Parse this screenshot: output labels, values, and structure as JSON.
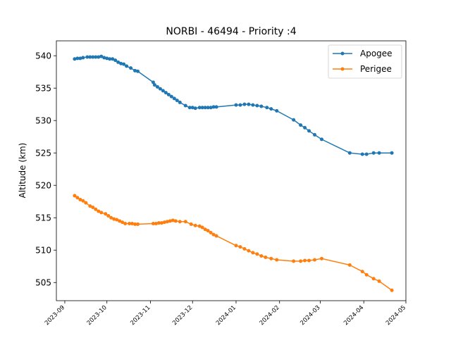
{
  "chart_data": {
    "type": "line",
    "title": "NORBI - 46494 - Priority :4",
    "xlabel": "",
    "ylabel": "Altitude (km)",
    "xlim": [
      "2023-08-26",
      "2024-05-01"
    ],
    "ylim": [
      502.2,
      542.3
    ],
    "x_ticks": [
      "2023-09",
      "2023-10",
      "2023-11",
      "2023-12",
      "2024-01",
      "2024-02",
      "2024-03",
      "2024-04",
      "2024-05"
    ],
    "y_ticks": [
      505,
      510,
      515,
      520,
      525,
      530,
      535,
      540
    ],
    "grid": false,
    "legend_position": "top-right",
    "series": [
      {
        "name": "Apogee",
        "color": "#1f77b4",
        "points": [
          [
            "2023-09-08",
            539.5
          ],
          [
            "2023-09-10",
            539.6
          ],
          [
            "2023-09-12",
            539.6
          ],
          [
            "2023-09-14",
            539.7
          ],
          [
            "2023-09-17",
            539.8
          ],
          [
            "2023-09-19",
            539.8
          ],
          [
            "2023-09-21",
            539.8
          ],
          [
            "2023-09-23",
            539.8
          ],
          [
            "2023-09-25",
            539.8
          ],
          [
            "2023-09-27",
            539.9
          ],
          [
            "2023-09-29",
            539.7
          ],
          [
            "2023-10-01",
            539.6
          ],
          [
            "2023-10-03",
            539.5
          ],
          [
            "2023-10-05",
            539.5
          ],
          [
            "2023-10-07",
            539.3
          ],
          [
            "2023-10-09",
            539.0
          ],
          [
            "2023-10-11",
            538.8
          ],
          [
            "2023-10-13",
            538.7
          ],
          [
            "2023-10-15",
            538.4
          ],
          [
            "2023-10-18",
            538.1
          ],
          [
            "2023-10-21",
            537.7
          ],
          [
            "2023-10-23",
            537.6
          ],
          [
            "2023-11-03",
            535.9
          ],
          [
            "2023-11-04",
            535.5
          ],
          [
            "2023-11-06",
            535.2
          ],
          [
            "2023-11-08",
            534.9
          ],
          [
            "2023-11-10",
            534.6
          ],
          [
            "2023-11-12",
            534.3
          ],
          [
            "2023-11-14",
            534.0
          ],
          [
            "2023-11-16",
            533.7
          ],
          [
            "2023-11-18",
            533.4
          ],
          [
            "2023-11-20",
            533.1
          ],
          [
            "2023-11-22",
            532.8
          ],
          [
            "2023-11-26",
            532.3
          ],
          [
            "2023-11-29",
            532.0
          ],
          [
            "2023-12-01",
            532.0
          ],
          [
            "2023-12-03",
            531.9
          ],
          [
            "2023-12-06",
            532.0
          ],
          [
            "2023-12-08",
            532.0
          ],
          [
            "2023-12-10",
            532.0
          ],
          [
            "2023-12-12",
            532.0
          ],
          [
            "2023-12-14",
            532.0
          ],
          [
            "2023-12-16",
            532.1
          ],
          [
            "2023-12-18",
            532.1
          ],
          [
            "2024-01-01",
            532.4
          ],
          [
            "2024-01-04",
            532.4
          ],
          [
            "2024-01-07",
            532.5
          ],
          [
            "2024-01-10",
            532.5
          ],
          [
            "2024-01-13",
            532.4
          ],
          [
            "2024-01-16",
            532.3
          ],
          [
            "2024-01-19",
            532.2
          ],
          [
            "2024-01-23",
            532.0
          ],
          [
            "2024-01-26",
            531.8
          ],
          [
            "2024-01-30",
            531.5
          ],
          [
            "2024-02-11",
            530.1
          ],
          [
            "2024-02-16",
            529.3
          ],
          [
            "2024-02-19",
            528.9
          ],
          [
            "2024-02-22",
            528.4
          ],
          [
            "2024-02-26",
            527.8
          ],
          [
            "2024-03-02",
            527.1
          ],
          [
            "2024-03-22",
            525.0
          ],
          [
            "2024-03-31",
            524.8
          ],
          [
            "2024-04-03",
            524.8
          ],
          [
            "2024-04-08",
            525.0
          ],
          [
            "2024-04-12",
            525.0
          ],
          [
            "2024-04-21",
            525.0
          ]
        ]
      },
      {
        "name": "Perigee",
        "color": "#ff7f0e",
        "points": [
          [
            "2023-09-08",
            518.4
          ],
          [
            "2023-09-10",
            518.1
          ],
          [
            "2023-09-12",
            517.8
          ],
          [
            "2023-09-14",
            517.6
          ],
          [
            "2023-09-16",
            517.3
          ],
          [
            "2023-09-19",
            516.8
          ],
          [
            "2023-09-21",
            516.6
          ],
          [
            "2023-09-23",
            516.3
          ],
          [
            "2023-09-25",
            516.0
          ],
          [
            "2023-09-27",
            515.8
          ],
          [
            "2023-09-30",
            515.6
          ],
          [
            "2023-10-02",
            515.3
          ],
          [
            "2023-10-04",
            515.0
          ],
          [
            "2023-10-06",
            514.8
          ],
          [
            "2023-10-08",
            514.7
          ],
          [
            "2023-10-10",
            514.5
          ],
          [
            "2023-10-12",
            514.3
          ],
          [
            "2023-10-14",
            514.1
          ],
          [
            "2023-10-17",
            514.1
          ],
          [
            "2023-10-19",
            514.1
          ],
          [
            "2023-10-21",
            514.0
          ],
          [
            "2023-10-23",
            514.0
          ],
          [
            "2023-11-03",
            514.1
          ],
          [
            "2023-11-05",
            514.1
          ],
          [
            "2023-11-07",
            514.2
          ],
          [
            "2023-11-09",
            514.2
          ],
          [
            "2023-11-11",
            514.3
          ],
          [
            "2023-11-13",
            514.4
          ],
          [
            "2023-11-15",
            514.5
          ],
          [
            "2023-11-17",
            514.6
          ],
          [
            "2023-11-19",
            514.5
          ],
          [
            "2023-11-22",
            514.4
          ],
          [
            "2023-11-26",
            514.4
          ],
          [
            "2023-11-30",
            514.0
          ],
          [
            "2023-12-03",
            513.8
          ],
          [
            "2023-12-06",
            513.7
          ],
          [
            "2023-12-08",
            513.5
          ],
          [
            "2023-12-10",
            513.2
          ],
          [
            "2023-12-12",
            513.0
          ],
          [
            "2023-12-14",
            512.7
          ],
          [
            "2023-12-16",
            512.4
          ],
          [
            "2023-12-18",
            512.2
          ],
          [
            "2024-01-01",
            510.7
          ],
          [
            "2024-01-04",
            510.5
          ],
          [
            "2024-01-07",
            510.2
          ],
          [
            "2024-01-10",
            509.9
          ],
          [
            "2024-01-13",
            509.6
          ],
          [
            "2024-01-16",
            509.4
          ],
          [
            "2024-01-19",
            509.1
          ],
          [
            "2024-01-22",
            508.9
          ],
          [
            "2024-01-26",
            508.7
          ],
          [
            "2024-01-30",
            508.5
          ],
          [
            "2024-02-11",
            508.3
          ],
          [
            "2024-02-16",
            508.3
          ],
          [
            "2024-02-19",
            508.4
          ],
          [
            "2024-02-22",
            508.4
          ],
          [
            "2024-02-26",
            508.5
          ],
          [
            "2024-03-02",
            508.7
          ],
          [
            "2024-03-22",
            507.7
          ],
          [
            "2024-03-31",
            506.7
          ],
          [
            "2024-04-03",
            506.2
          ],
          [
            "2024-04-08",
            505.6
          ],
          [
            "2024-04-12",
            505.2
          ],
          [
            "2024-04-21",
            503.8
          ]
        ]
      }
    ]
  }
}
